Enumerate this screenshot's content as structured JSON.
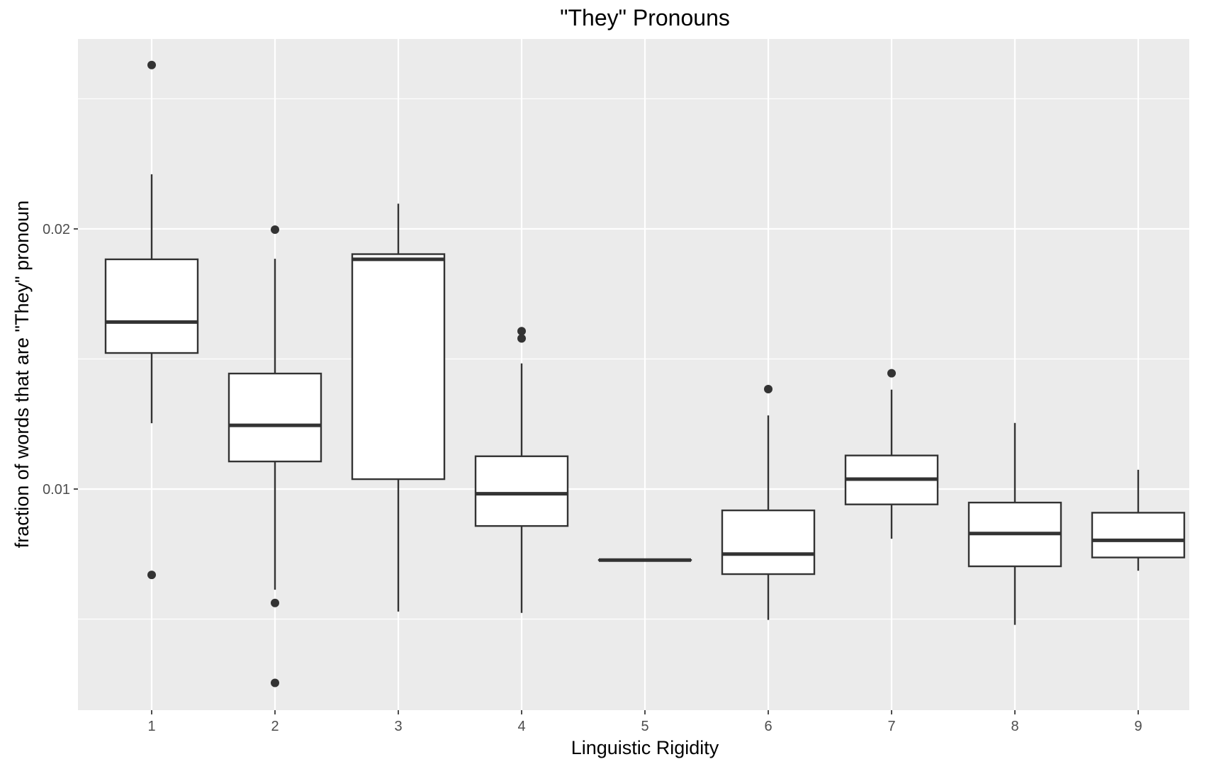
{
  "chart_data": {
    "type": "boxplot",
    "title": "\"They\" Pronouns",
    "xlabel": "Linguistic Rigidity",
    "ylabel": "fraction of words that are \"They\" pronoun",
    "categories": [
      "1",
      "2",
      "3",
      "4",
      "5",
      "6",
      "7",
      "8",
      "9"
    ],
    "yticks": [
      0.01,
      0.02
    ],
    "ytick_labels": [
      "0.01",
      "0.02"
    ],
    "ylim": [
      0.0015,
      0.0273
    ],
    "grid": true,
    "legend": "none",
    "colors": {
      "panel_background": "#ebebeb",
      "grid": "#ffffff",
      "box_fill": "#ffffff",
      "box_stroke": "#333333",
      "text": "#000000",
      "tick_text": "#4d4d4d"
    },
    "boxes": [
      {
        "x": "1",
        "whisker_low": 0.01253,
        "q1": 0.01523,
        "median": 0.01642,
        "q3": 0.01883,
        "whisker_high": 0.0221,
        "outliers": [
          0.0263,
          0.0067
        ]
      },
      {
        "x": "2",
        "whisker_low": 0.00613,
        "q1": 0.01106,
        "median": 0.01245,
        "q3": 0.01444,
        "whisker_high": 0.01885,
        "outliers": [
          0.01997,
          0.00562,
          0.00255
        ]
      },
      {
        "x": "3",
        "whisker_low": 0.00529,
        "q1": 0.01038,
        "median": 0.01883,
        "q3": 0.01903,
        "whisker_high": 0.02097,
        "outliers": []
      },
      {
        "x": "4",
        "whisker_low": 0.00524,
        "q1": 0.00858,
        "median": 0.00982,
        "q3": 0.01126,
        "whisker_high": 0.01483,
        "outliers": [
          0.01607,
          0.01579
        ]
      },
      {
        "x": "5",
        "whisker_low": 0.00727,
        "q1": 0.00727,
        "median": 0.00727,
        "q3": 0.00727,
        "whisker_high": 0.00727,
        "outliers": []
      },
      {
        "x": "6",
        "whisker_low": 0.00497,
        "q1": 0.00673,
        "median": 0.0075,
        "q3": 0.00918,
        "whisker_high": 0.01283,
        "outliers": [
          0.01384
        ]
      },
      {
        "x": "7",
        "whisker_low": 0.00809,
        "q1": 0.00941,
        "median": 0.01038,
        "q3": 0.01129,
        "whisker_high": 0.01382,
        "outliers": [
          0.01445
        ]
      },
      {
        "x": "8",
        "whisker_low": 0.00478,
        "q1": 0.00703,
        "median": 0.00829,
        "q3": 0.00948,
        "whisker_high": 0.01254,
        "outliers": []
      },
      {
        "x": "9",
        "whisker_low": 0.00686,
        "q1": 0.00737,
        "median": 0.00803,
        "q3": 0.00909,
        "whisker_high": 0.01074,
        "outliers": []
      }
    ]
  }
}
